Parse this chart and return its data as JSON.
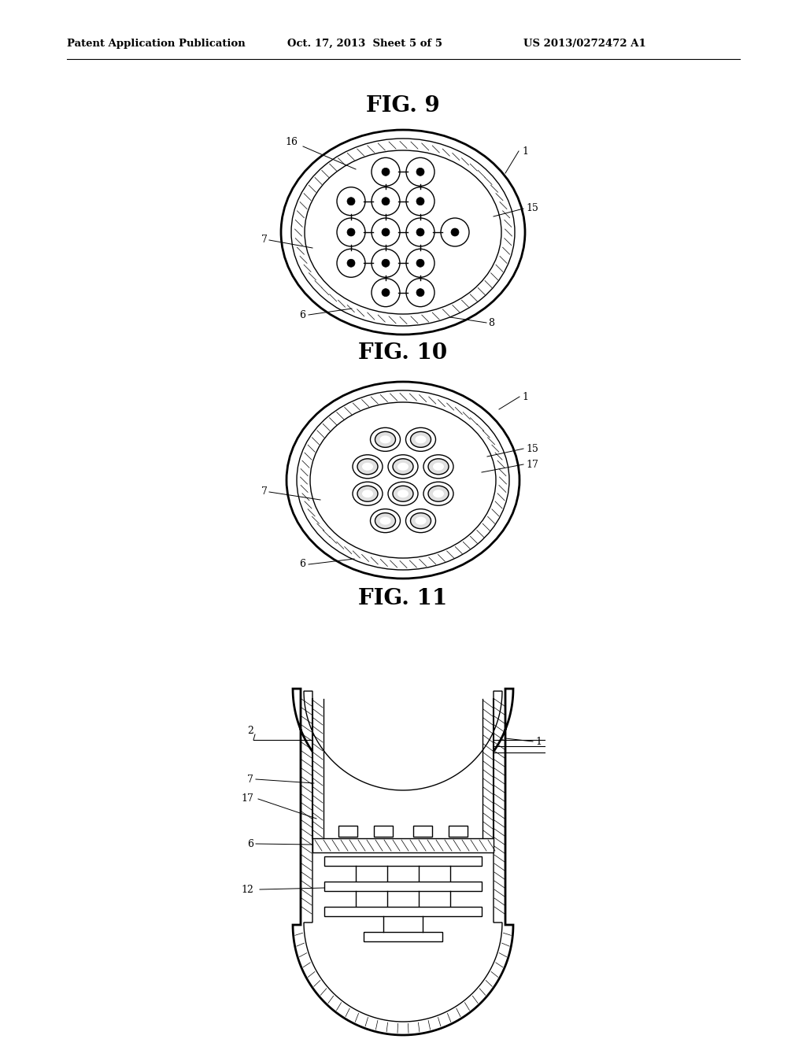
{
  "header_left": "Patent Application Publication",
  "header_mid": "Oct. 17, 2013  Sheet 5 of 5",
  "header_right": "US 2013/0272472 A1",
  "fig9_title": "FIG. 9",
  "fig10_title": "FIG. 10",
  "fig11_title": "FIG. 11",
  "bg_color": "#ffffff",
  "line_color": "#000000"
}
